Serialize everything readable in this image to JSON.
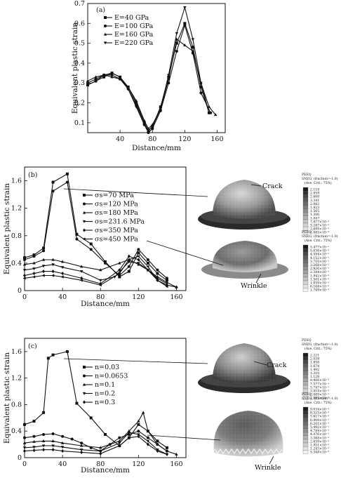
{
  "chart_data": [
    {
      "type": "line",
      "panel": "(a)",
      "xlabel": "Distance/mm",
      "ylabel": "Equivalent plastic strain",
      "xlim": [
        0,
        170
      ],
      "ylim": [
        0.05,
        0.7
      ],
      "xticks": [
        "40",
        "80",
        "120",
        "160"
      ],
      "yticks": [
        "0.1",
        "0.2",
        "0.3",
        "0.4",
        "0.5",
        "0.6",
        "0.7"
      ],
      "legend_position": "top-left",
      "series": [
        {
          "name": "E=40 GPa",
          "marker": "square",
          "x": [
            0,
            10,
            20,
            30,
            40,
            50,
            60,
            70,
            75,
            80,
            90,
            100,
            110,
            120,
            130,
            140,
            150
          ],
          "y": [
            0.29,
            0.31,
            0.33,
            0.35,
            0.33,
            0.28,
            0.2,
            0.1,
            0.06,
            0.08,
            0.18,
            0.33,
            0.5,
            0.6,
            0.48,
            0.28,
            0.15
          ]
        },
        {
          "name": "E=100 GPa",
          "marker": "circle",
          "x": [
            0,
            10,
            20,
            30,
            40,
            50,
            60,
            70,
            75,
            80,
            90,
            100,
            110,
            120,
            130,
            140,
            152
          ],
          "y": [
            0.3,
            0.32,
            0.34,
            0.34,
            0.32,
            0.27,
            0.19,
            0.09,
            0.05,
            0.07,
            0.16,
            0.3,
            0.46,
            0.59,
            0.45,
            0.25,
            0.15
          ]
        },
        {
          "name": "E=160 GPa",
          "marker": "triangle-up",
          "x": [
            0,
            10,
            20,
            30,
            40,
            50,
            60,
            70,
            75,
            80,
            90,
            100,
            110,
            120,
            130,
            140,
            150,
            158
          ],
          "y": [
            0.31,
            0.33,
            0.34,
            0.33,
            0.32,
            0.28,
            0.21,
            0.11,
            0.07,
            0.09,
            0.17,
            0.32,
            0.52,
            0.49,
            0.46,
            0.3,
            0.18,
            0.14
          ]
        },
        {
          "name": "E=220 GPa",
          "marker": "triangle-down",
          "x": [
            0,
            10,
            20,
            30,
            40,
            50,
            60,
            70,
            75,
            80,
            90,
            100,
            110,
            120,
            130,
            140,
            150
          ],
          "y": [
            0.29,
            0.31,
            0.34,
            0.35,
            0.33,
            0.27,
            0.18,
            0.09,
            0.06,
            0.08,
            0.17,
            0.34,
            0.55,
            0.68,
            0.52,
            0.3,
            0.15
          ]
        }
      ]
    },
    {
      "type": "line",
      "panel": "(b)",
      "xlabel": "Distance/mm",
      "ylabel": "Equivalent plastic strain",
      "xlim": [
        0,
        170
      ],
      "ylim": [
        0,
        1.8
      ],
      "xticks": [
        "0",
        "40",
        "80",
        "120",
        "160"
      ],
      "yticks": [
        "0",
        "0.4",
        "0.8",
        "1.2",
        "1.6"
      ],
      "legend_position": "right",
      "series": [
        {
          "name": "σs=70 MPa",
          "marker": "square",
          "x": [
            0,
            10,
            20,
            30,
            45,
            55,
            70,
            85,
            100,
            110,
            120,
            130,
            140,
            150
          ],
          "y": [
            0.48,
            0.52,
            0.62,
            1.58,
            1.7,
            0.82,
            0.68,
            0.42,
            0.2,
            0.28,
            0.55,
            0.4,
            0.25,
            0.15
          ]
        },
        {
          "name": "σs=120 MPa",
          "marker": "circle",
          "x": [
            0,
            10,
            20,
            30,
            45,
            55,
            70,
            85,
            100,
            110,
            120,
            130,
            140,
            150
          ],
          "y": [
            0.45,
            0.5,
            0.58,
            1.45,
            1.58,
            0.75,
            0.6,
            0.4,
            0.22,
            0.35,
            0.6,
            0.45,
            0.3,
            0.18
          ]
        },
        {
          "name": "σs=180 MPa",
          "marker": "triangle-up",
          "x": [
            0,
            10,
            20,
            30,
            40,
            60,
            80,
            100,
            110,
            120,
            130,
            140,
            150,
            160
          ],
          "y": [
            0.38,
            0.4,
            0.45,
            0.45,
            0.42,
            0.35,
            0.3,
            0.4,
            0.45,
            0.38,
            0.3,
            0.2,
            0.12,
            0.05
          ]
        },
        {
          "name": "σs=231.6 MPa",
          "marker": "triangle-down",
          "x": [
            0,
            10,
            20,
            30,
            40,
            60,
            80,
            95,
            110,
            120,
            130,
            140,
            150
          ],
          "y": [
            0.3,
            0.32,
            0.36,
            0.38,
            0.34,
            0.28,
            0.15,
            0.2,
            0.42,
            0.4,
            0.3,
            0.18,
            0.1
          ]
        },
        {
          "name": "σs=350 MPa",
          "marker": "diamond",
          "x": [
            0,
            10,
            20,
            30,
            40,
            60,
            80,
            100,
            110,
            120,
            130,
            140,
            150,
            160
          ],
          "y": [
            0.22,
            0.25,
            0.28,
            0.28,
            0.25,
            0.18,
            0.1,
            0.3,
            0.5,
            0.45,
            0.3,
            0.15,
            0.08,
            0.05
          ]
        },
        {
          "name": "σs=450 MPa",
          "marker": "triangle-left",
          "x": [
            0,
            10,
            20,
            30,
            40,
            60,
            80,
            100,
            110,
            120,
            130,
            140,
            150
          ],
          "y": [
            0.18,
            0.2,
            0.22,
            0.22,
            0.2,
            0.15,
            0.08,
            0.25,
            0.45,
            0.5,
            0.35,
            0.15,
            0.06
          ]
        }
      ]
    },
    {
      "type": "line",
      "panel": "(c)",
      "xlabel": "Distance/mm",
      "ylabel": "Equivalent plastic strain",
      "xlim": [
        0,
        170
      ],
      "ylim": [
        0,
        1.8
      ],
      "xticks": [
        "0",
        "40",
        "80",
        "120",
        "160"
      ],
      "yticks": [
        "0",
        "0.4",
        "0.8",
        "1.2",
        "1.6"
      ],
      "legend_position": "right",
      "series": [
        {
          "name": "n=0.03",
          "marker": "square",
          "x": [
            0,
            10,
            20,
            25,
            30,
            45,
            55,
            70,
            85,
            100,
            110,
            120,
            130,
            140,
            150
          ],
          "y": [
            0.5,
            0.55,
            0.68,
            1.5,
            1.55,
            1.6,
            0.82,
            0.6,
            0.35,
            0.18,
            0.3,
            0.5,
            0.4,
            0.25,
            0.15
          ]
        },
        {
          "name": "n=0.0653",
          "marker": "circle",
          "x": [
            0,
            10,
            20,
            30,
            40,
            50,
            60,
            70,
            80,
            90,
            100,
            110,
            120,
            130,
            140,
            150
          ],
          "y": [
            0.3,
            0.32,
            0.35,
            0.36,
            0.32,
            0.28,
            0.22,
            0.15,
            0.1,
            0.2,
            0.3,
            0.35,
            0.4,
            0.3,
            0.2,
            0.1
          ]
        },
        {
          "name": "n=0.1",
          "marker": "triangle-up",
          "x": [
            0,
            10,
            20,
            30,
            40,
            60,
            80,
            100,
            110,
            120,
            125,
            130,
            140,
            150,
            160
          ],
          "y": [
            0.22,
            0.24,
            0.25,
            0.25,
            0.22,
            0.18,
            0.15,
            0.25,
            0.4,
            0.55,
            0.68,
            0.4,
            0.2,
            0.1,
            0.05
          ]
        },
        {
          "name": "n=0.2",
          "marker": "triangle-down",
          "x": [
            0,
            10,
            20,
            30,
            40,
            60,
            80,
            100,
            110,
            120,
            130,
            140,
            150
          ],
          "y": [
            0.15,
            0.16,
            0.18,
            0.18,
            0.16,
            0.12,
            0.1,
            0.22,
            0.38,
            0.35,
            0.25,
            0.12,
            0.05
          ]
        },
        {
          "name": "n=0.3",
          "marker": "diamond",
          "x": [
            0,
            10,
            20,
            30,
            40,
            60,
            80,
            100,
            110,
            120,
            130,
            140,
            150
          ],
          "y": [
            0.1,
            0.11,
            0.12,
            0.12,
            0.1,
            0.08,
            0.06,
            0.18,
            0.3,
            0.32,
            0.2,
            0.1,
            0.05
          ]
        }
      ]
    }
  ],
  "contours": [
    {
      "title": "PEEQ",
      "subtitle": "SNEG, (fraction=-1.0)",
      "avg": "(Ave. Crit.: 75%)",
      "callout": "Crack",
      "values": [
        "2.118",
        "2.859",
        "2.600",
        "3.341",
        "2.082",
        "1.823",
        "1.565",
        "1.306",
        "1.047",
        "7.877×10⁻¹",
        "5.287×10⁻¹",
        "2.699×10⁻¹",
        "1.083×10⁻²"
      ],
      "colors": [
        "#1b1b1b",
        "#333",
        "#474747",
        "#5a5a5a",
        "#6c6c6c",
        "#7d7d7d",
        "#8e8e8e",
        "#a0a0a0",
        "#b1b1b1",
        "#c2c2c2",
        "#d2d2d2",
        "#e2e2e2",
        "#f1f1f1"
      ]
    },
    {
      "title": "PEEQ",
      "subtitle": "SNEG, (fraction=-1.0)",
      "avg": "(Ave. Crit.: 75%)",
      "callout": "Wrinkle",
      "values": [
        "5.477×10⁻¹",
        "5.036×10⁻¹",
        "4.594×10⁻¹",
        "4.152×10⁻¹",
        "3.710×10⁻¹",
        "3.268×10⁻¹",
        "2.826×10⁻¹",
        "2.384×10⁻¹",
        "1.942×10⁻¹",
        "1.501×10⁻¹",
        "1.059×10⁻¹",
        "6.168×10⁻²",
        "1.749×10⁻²"
      ],
      "colors": [
        "#1b1b1b",
        "#333",
        "#474747",
        "#5a5a5a",
        "#6c6c6c",
        "#7d7d7d",
        "#8e8e8e",
        "#a0a0a0",
        "#b1b1b1",
        "#c2c2c2",
        "#d2d2d2",
        "#e2e2e2",
        "#f1f1f1"
      ]
    },
    {
      "title": "PEEQ",
      "subtitle": "SNEG, (fraction=-1.0)",
      "avg": "(Ave. Crit.: 75%)",
      "callout": "Crack",
      "values": [
        "2.221",
        "2.038",
        "1.858",
        "1.674",
        "1.492",
        "1.310",
        "1.128",
        "9.406×10⁻¹",
        "7.577×10⁻¹",
        "5.747×10⁻¹",
        "3.918×10⁻¹",
        "2.089×10⁻¹",
        "2.597×10⁻²"
      ],
      "colors": [
        "#1b1b1b",
        "#333",
        "#474747",
        "#5a5a5a",
        "#6c6c6c",
        "#7d7d7d",
        "#8e8e8e",
        "#a0a0a0",
        "#b1b1b1",
        "#c2c2c2",
        "#d2d2d2",
        "#e2e2e2",
        "#f1f1f1"
      ]
    },
    {
      "title": "PEEQ",
      "subtitle": "SNEG, (fraction=-1.0)",
      "avg": "(Ave. Crit.: 75%)",
      "callout": "Wrinkle",
      "values": [
        "9.034×10⁻¹",
        "8.325×10⁻¹",
        "7.617×10⁻¹",
        "6.909×10⁻¹",
        "6.201×10⁻¹",
        "5.492×10⁻¹",
        "4.784×10⁻¹",
        "4.076×10⁻¹",
        "3.368×10⁻¹",
        "2.659×10⁻¹",
        "1.951×10⁻¹",
        "1.243×10⁻¹",
        "5.348×10⁻²"
      ],
      "colors": [
        "#1b1b1b",
        "#333",
        "#474747",
        "#5a5a5a",
        "#6c6c6c",
        "#7d7d7d",
        "#8e8e8e",
        "#a0a0a0",
        "#b1b1b1",
        "#c2c2c2",
        "#d2d2d2",
        "#e2e2e2",
        "#f1f1f1"
      ]
    }
  ]
}
